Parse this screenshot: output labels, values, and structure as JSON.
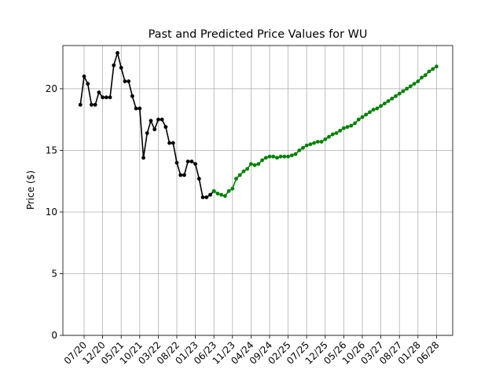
{
  "chart_data": {
    "type": "line",
    "title": "Past and Predicted Price Values for WU",
    "xlabel": "",
    "ylabel": "Price ($)",
    "ylim": [
      0,
      23.5
    ],
    "yticks": [
      0,
      5,
      10,
      15,
      20
    ],
    "grid": true,
    "x_tick_labels": [
      "07/20",
      "12/20",
      "05/21",
      "10/21",
      "03/22",
      "08/22",
      "01/23",
      "06/23",
      "11/23",
      "04/24",
      "09/24",
      "02/25",
      "07/25",
      "12/25",
      "05/26",
      "10/26",
      "03/27",
      "08/27",
      "01/28",
      "06/28"
    ],
    "colors": {
      "past": "#000000",
      "predicted": "#008000"
    },
    "series": [
      {
        "name": "",
        "color": "#000000",
        "x": [
          "2020-06",
          "2020-07",
          "2020-08",
          "2020-09",
          "2020-10",
          "2020-11",
          "2020-12",
          "2021-01",
          "2021-02",
          "2021-03",
          "2021-04",
          "2021-05",
          "2021-06",
          "2021-07",
          "2021-08",
          "2021-09",
          "2021-10",
          "2021-11",
          "2021-12",
          "2022-01",
          "2022-02",
          "2022-03",
          "2022-04",
          "2022-05",
          "2022-06",
          "2022-07",
          "2022-08",
          "2022-09",
          "2022-10",
          "2022-11",
          "2022-12",
          "2023-01",
          "2023-02",
          "2023-03",
          "2023-04",
          "2023-05",
          "2023-06"
        ],
        "values": [
          18.7,
          21.0,
          20.4,
          18.7,
          18.7,
          19.7,
          19.3,
          19.3,
          19.3,
          21.9,
          22.9,
          21.7,
          20.6,
          20.6,
          19.4,
          18.4,
          18.4,
          14.4,
          16.4,
          17.4,
          16.7,
          17.5,
          17.5,
          16.9,
          15.6,
          15.6,
          14.0,
          13.0,
          13.0,
          14.1,
          14.1,
          13.9,
          12.7,
          11.2,
          11.2,
          11.4,
          11.7
        ]
      },
      {
        "name": "",
        "color": "#008000",
        "x": [
          "2023-06",
          "2023-07",
          "2023-08",
          "2023-09",
          "2023-10",
          "2023-11",
          "2023-12",
          "2024-01",
          "2024-02",
          "2024-03",
          "2024-04",
          "2024-05",
          "2024-06",
          "2024-07",
          "2024-08",
          "2024-09",
          "2024-10",
          "2024-11",
          "2024-12",
          "2025-01",
          "2025-02",
          "2025-03",
          "2025-04",
          "2025-05",
          "2025-06",
          "2025-07",
          "2025-08",
          "2025-09",
          "2025-10",
          "2025-11",
          "2025-12",
          "2026-01",
          "2026-02",
          "2026-03",
          "2026-04",
          "2026-05",
          "2026-06",
          "2026-07",
          "2026-08",
          "2026-09",
          "2026-10",
          "2026-11",
          "2026-12",
          "2027-01",
          "2027-02",
          "2027-03",
          "2027-04",
          "2027-05",
          "2027-06",
          "2027-07",
          "2027-08",
          "2027-09",
          "2027-10",
          "2027-11",
          "2027-12",
          "2028-01",
          "2028-02",
          "2028-03",
          "2028-04",
          "2028-05",
          "2028-06"
        ],
        "values": [
          11.7,
          11.5,
          11.4,
          11.3,
          11.7,
          11.9,
          12.7,
          13.0,
          13.3,
          13.5,
          13.9,
          13.8,
          13.9,
          14.2,
          14.4,
          14.5,
          14.5,
          14.4,
          14.5,
          14.5,
          14.5,
          14.6,
          14.7,
          15.0,
          15.2,
          15.4,
          15.5,
          15.6,
          15.7,
          15.7,
          15.9,
          16.1,
          16.3,
          16.4,
          16.6,
          16.8,
          16.9,
          17.0,
          17.2,
          17.5,
          17.7,
          17.9,
          18.1,
          18.3,
          18.4,
          18.6,
          18.8,
          19.0,
          19.2,
          19.4,
          19.6,
          19.8,
          20.0,
          20.2,
          20.4,
          20.6,
          20.9,
          21.1,
          21.4,
          21.6,
          21.8
        ]
      }
    ]
  }
}
